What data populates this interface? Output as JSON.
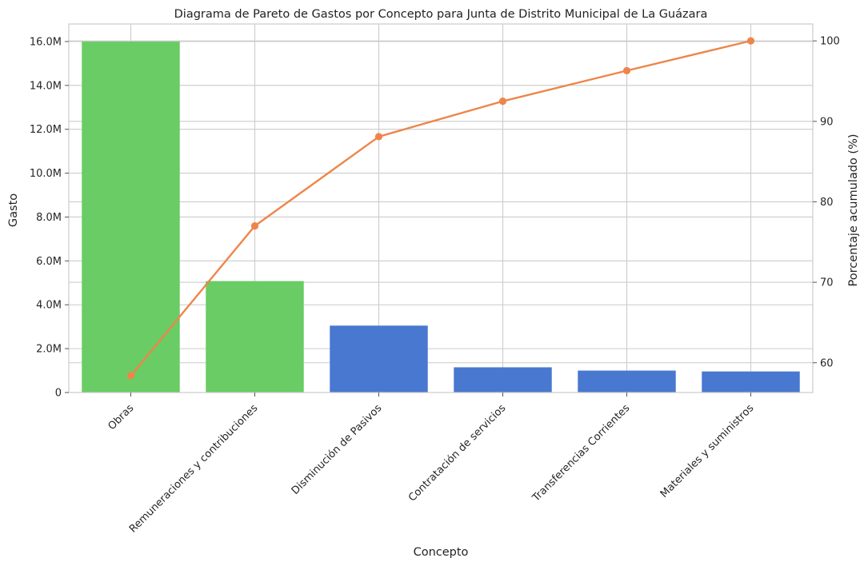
{
  "chart_data": {
    "type": "bar",
    "title": "Diagrama de Pareto de Gastos por Concepto para Junta de Distrito Municipal de La Guázara",
    "xlabel": "Concepto",
    "ylabel": "Gasto",
    "y2label": "Porcentaje acumulado (%)",
    "categories": [
      "Obras",
      "Remuneraciones y contribuciones",
      "Disminución de Pasivos",
      "Contratación de servicios",
      "Transferencias Corrientes",
      "Materiales y suministros"
    ],
    "series": [
      {
        "values": [
          16000000,
          5080000,
          3050000,
          1150000,
          1000000,
          960000
        ],
        "colors": [
          "#6acc64",
          "#6acc64",
          "#4878d0",
          "#4878d0",
          "#4878d0",
          "#4878d0"
        ]
      },
      {
        "type": "line",
        "axis": "right",
        "color": "#ee854a",
        "values": [
          58.4,
          77.0,
          88.1,
          92.5,
          96.3,
          100.0
        ]
      }
    ],
    "ylim": [
      0,
      16800000
    ],
    "y_ticks": [
      0,
      2000000,
      4000000,
      6000000,
      8000000,
      10000000,
      12000000,
      14000000,
      16000000
    ],
    "y_tick_labels": [
      "0",
      "2.0M",
      "4.0M",
      "6.0M",
      "8.0M",
      "10.0M",
      "12.0M",
      "14.0M",
      "16.0M"
    ],
    "y2lim": [
      56.3,
      102.1
    ],
    "y2_ticks": [
      60,
      70,
      80,
      90,
      100
    ],
    "y2_tick_labels": [
      "60",
      "70",
      "80",
      "90",
      "100"
    ],
    "grid": true,
    "legend": "none"
  }
}
